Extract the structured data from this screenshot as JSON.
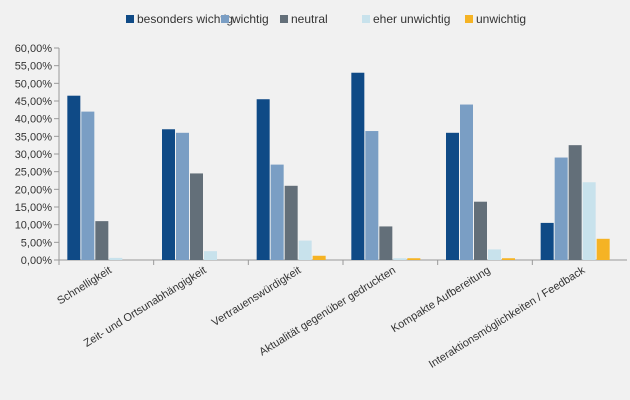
{
  "chart_data": {
    "type": "bar",
    "title": "",
    "xlabel": "",
    "ylabel": "",
    "ylim": [
      0,
      60
    ],
    "yticks": [
      "0,00%",
      "5,00%",
      "10,00%",
      "15,00%",
      "20,00%",
      "25,00%",
      "30,00%",
      "35,00%",
      "40,00%",
      "45,00%",
      "50,00%",
      "55,00%",
      "60,00%"
    ],
    "grid": false,
    "legend_position": "top",
    "categories": [
      "Schnelligkeit",
      "Zeit- und Ortsunabhängigkeit",
      "Vertrauenswürdigkeit",
      "Aktualität gegenüber gedruckten",
      "Kompakte Aufbereitung",
      "Interaktionsmöglichkeiten / Feedback"
    ],
    "series": [
      {
        "name": "besonders wichtig",
        "color": "#0f4a86",
        "values": [
          46.5,
          37.0,
          45.5,
          53.0,
          36.0,
          10.5
        ]
      },
      {
        "name": "wichtig",
        "color": "#7a9ec4",
        "values": [
          42.0,
          36.0,
          27.0,
          36.5,
          44.0,
          29.0
        ]
      },
      {
        "name": "neutral",
        "color": "#636f79",
        "values": [
          11.0,
          24.5,
          21.0,
          9.5,
          16.5,
          32.5
        ]
      },
      {
        "name": "eher unwichtig",
        "color": "#c8e2ec",
        "values": [
          0.6,
          2.5,
          5.5,
          0.5,
          3.0,
          22.0
        ]
      },
      {
        "name": "unwichtig",
        "color": "#f5b324",
        "values": [
          0.0,
          0.0,
          1.2,
          0.5,
          0.5,
          6.0
        ]
      }
    ]
  }
}
